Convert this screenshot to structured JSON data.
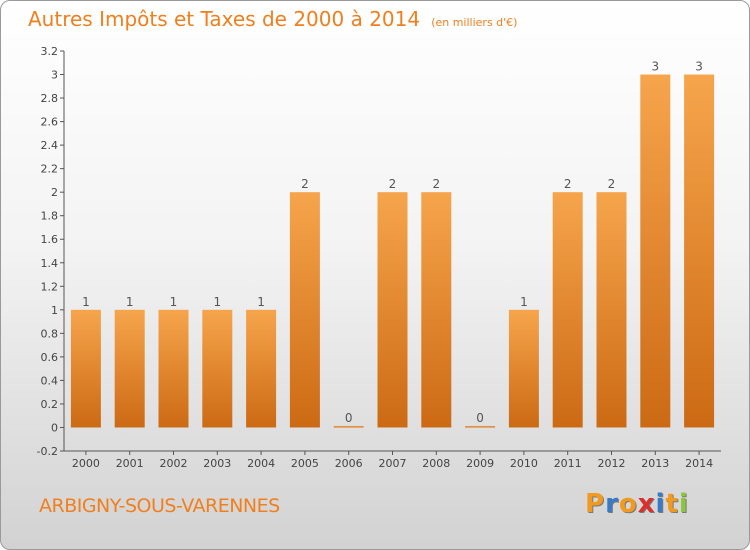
{
  "header": {
    "title": "Autres Impôts et Taxes de 2000 à 2014",
    "unit_note": "(en milliers d'€)"
  },
  "footer": {
    "place_name": "ARBIGNY-SOUS-VARENNES",
    "brand": {
      "letters": [
        "P",
        "r",
        "o",
        "x",
        "i",
        "t",
        "i"
      ]
    }
  },
  "colors": {
    "accent": "#f07f1e",
    "bar_top": "#f6a54c",
    "bar_bottom": "#cc6a14",
    "brand_letters": [
      "#f29a1f",
      "#3a79c4",
      "#f29a1f",
      "#d9302a",
      "#3a79c4",
      "#f29a1f",
      "#8cc63f"
    ]
  },
  "chart_data": {
    "type": "bar",
    "categories": [
      "2000",
      "2001",
      "2002",
      "2003",
      "2004",
      "2005",
      "2006",
      "2007",
      "2008",
      "2009",
      "2010",
      "2011",
      "2012",
      "2013",
      "2014"
    ],
    "values": [
      1,
      1,
      1,
      1,
      1,
      2,
      0,
      2,
      2,
      0,
      1,
      2,
      2,
      3,
      3
    ],
    "data_labels": [
      "1",
      "1",
      "1",
      "1",
      "1",
      "2",
      "0",
      "2",
      "2",
      "0",
      "1",
      "2",
      "2",
      "3",
      "3"
    ],
    "ylim": [
      -0.2,
      3.2
    ],
    "y_ticks": [
      -0.2,
      0,
      0.2,
      0.4,
      0.6,
      0.8,
      1,
      1.2,
      1.4,
      1.6,
      1.8,
      2,
      2.2,
      2.4,
      2.6,
      2.8,
      3,
      3.2
    ],
    "y_tick_labels": [
      "-0.2",
      "0",
      "0.2",
      "0.4",
      "0.6",
      "0.8",
      "1",
      "1.2",
      "1.4",
      "1.6",
      "1.8",
      "2",
      "2.2",
      "2.4",
      "2.6",
      "2.8",
      "3",
      "3.2"
    ],
    "grid": false,
    "legend": "none"
  }
}
